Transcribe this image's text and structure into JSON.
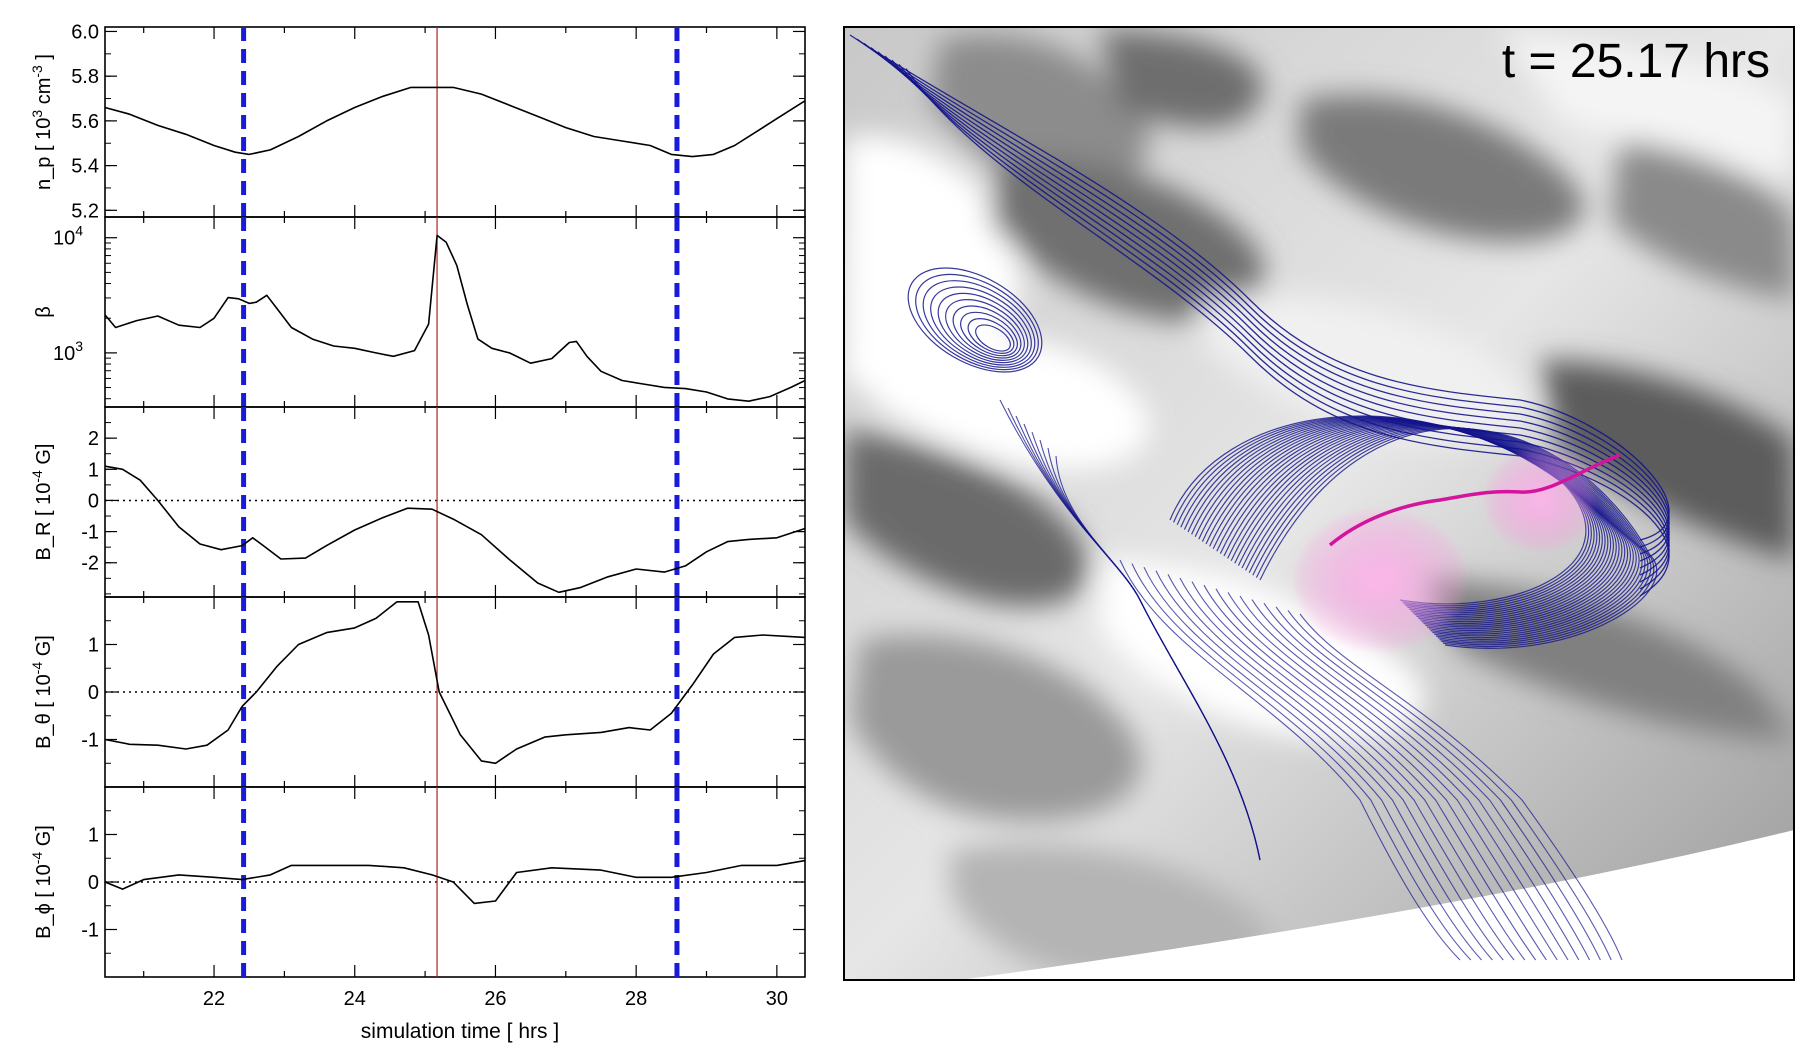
{
  "chart_data": {
    "type": "line",
    "x_axis": {
      "label": "simulation time   [ hrs ]",
      "range": [
        20.45,
        30.4
      ],
      "ticks": [
        22,
        24,
        26,
        28,
        30
      ]
    },
    "markers": {
      "vertical_dashed_blue": [
        22.42,
        28.58
      ],
      "vertical_red": 25.17,
      "dashed_color": "#1a1adb",
      "red_color": "#b22222"
    },
    "panels": [
      {
        "key": "n_p",
        "ylabel_main": "n_p  [ 10",
        "ylabel_exp": "3",
        "ylabel_rest": " cm",
        "ylabel_exp2": "-3",
        "ylabel_end": "]",
        "yrange": [
          5.17,
          6.02
        ],
        "log": false,
        "ticks": [
          "5.2",
          "5.4",
          "5.6",
          "5.8",
          "6.0"
        ],
        "tick_values": [
          5.2,
          5.4,
          5.6,
          5.8,
          6.0
        ],
        "zero_line": false,
        "points": [
          [
            20.45,
            5.66
          ],
          [
            20.8,
            5.63
          ],
          [
            21.2,
            5.58
          ],
          [
            21.6,
            5.54
          ],
          [
            22.0,
            5.49
          ],
          [
            22.3,
            5.46
          ],
          [
            22.5,
            5.45
          ],
          [
            22.8,
            5.47
          ],
          [
            23.2,
            5.53
          ],
          [
            23.6,
            5.6
          ],
          [
            24.0,
            5.66
          ],
          [
            24.4,
            5.71
          ],
          [
            24.8,
            5.75
          ],
          [
            25.1,
            5.75
          ],
          [
            25.4,
            5.75
          ],
          [
            25.8,
            5.72
          ],
          [
            26.2,
            5.67
          ],
          [
            26.6,
            5.62
          ],
          [
            27.0,
            5.57
          ],
          [
            27.4,
            5.53
          ],
          [
            27.8,
            5.51
          ],
          [
            28.2,
            5.49
          ],
          [
            28.5,
            5.45
          ],
          [
            28.8,
            5.44
          ],
          [
            29.1,
            5.45
          ],
          [
            29.4,
            5.49
          ],
          [
            29.7,
            5.55
          ],
          [
            30.0,
            5.61
          ],
          [
            30.4,
            5.69
          ]
        ]
      },
      {
        "key": "beta",
        "ylabel_main": "β",
        "yrange": [
          2.53,
          4.18
        ],
        "log": true,
        "ticks": [
          "10",
          "10"
        ],
        "tick_exps": [
          "3",
          "4"
        ],
        "tick_values": [
          3,
          4
        ],
        "zero_line": false,
        "points": [
          [
            20.45,
            3.33
          ],
          [
            20.6,
            3.22
          ],
          [
            20.9,
            3.28
          ],
          [
            21.2,
            3.32
          ],
          [
            21.5,
            3.24
          ],
          [
            21.8,
            3.22
          ],
          [
            22.0,
            3.3
          ],
          [
            22.2,
            3.48
          ],
          [
            22.35,
            3.47
          ],
          [
            22.5,
            3.43
          ],
          [
            22.6,
            3.44
          ],
          [
            22.75,
            3.5
          ],
          [
            22.9,
            3.38
          ],
          [
            23.1,
            3.22
          ],
          [
            23.4,
            3.12
          ],
          [
            23.7,
            3.06
          ],
          [
            24.0,
            3.04
          ],
          [
            24.3,
            3.0
          ],
          [
            24.55,
            2.97
          ],
          [
            24.85,
            3.02
          ],
          [
            25.05,
            3.25
          ],
          [
            25.17,
            4.02
          ],
          [
            25.3,
            3.96
          ],
          [
            25.45,
            3.76
          ],
          [
            25.6,
            3.42
          ],
          [
            25.75,
            3.12
          ],
          [
            25.95,
            3.04
          ],
          [
            26.2,
            3.0
          ],
          [
            26.5,
            2.91
          ],
          [
            26.8,
            2.95
          ],
          [
            27.05,
            3.09
          ],
          [
            27.15,
            3.1
          ],
          [
            27.3,
            2.97
          ],
          [
            27.5,
            2.84
          ],
          [
            27.8,
            2.76
          ],
          [
            28.1,
            2.73
          ],
          [
            28.4,
            2.7
          ],
          [
            28.7,
            2.69
          ],
          [
            29.0,
            2.66
          ],
          [
            29.3,
            2.6
          ],
          [
            29.6,
            2.58
          ],
          [
            29.9,
            2.62
          ],
          [
            30.2,
            2.7
          ],
          [
            30.4,
            2.76
          ]
        ]
      },
      {
        "key": "B_R",
        "ylabel_main": "B_R",
        "ylabel_unit": "[ 10",
        "ylabel_exp": "-4",
        "ylabel_end": " G]",
        "yrange": [
          -3.1,
          3.0
        ],
        "log": false,
        "ticks": [
          "-2",
          "-1",
          "0",
          "1",
          "2"
        ],
        "tick_values": [
          -2,
          -1,
          0,
          1,
          2
        ],
        "zero_line": true,
        "points": [
          [
            20.45,
            1.1
          ],
          [
            20.7,
            1.0
          ],
          [
            20.95,
            0.65
          ],
          [
            21.2,
            0.0
          ],
          [
            21.5,
            -0.85
          ],
          [
            21.8,
            -1.4
          ],
          [
            22.1,
            -1.58
          ],
          [
            22.4,
            -1.45
          ],
          [
            22.55,
            -1.2
          ],
          [
            22.7,
            -1.45
          ],
          [
            22.95,
            -1.88
          ],
          [
            23.3,
            -1.85
          ],
          [
            23.6,
            -1.45
          ],
          [
            24.0,
            -0.95
          ],
          [
            24.4,
            -0.55
          ],
          [
            24.75,
            -0.25
          ],
          [
            25.1,
            -0.28
          ],
          [
            25.4,
            -0.6
          ],
          [
            25.8,
            -1.1
          ],
          [
            26.2,
            -1.9
          ],
          [
            26.6,
            -2.65
          ],
          [
            26.9,
            -2.95
          ],
          [
            27.2,
            -2.8
          ],
          [
            27.6,
            -2.45
          ],
          [
            28.0,
            -2.2
          ],
          [
            28.4,
            -2.3
          ],
          [
            28.7,
            -2.1
          ],
          [
            29.0,
            -1.65
          ],
          [
            29.3,
            -1.32
          ],
          [
            29.6,
            -1.25
          ],
          [
            30.0,
            -1.2
          ],
          [
            30.4,
            -0.9
          ]
        ]
      },
      {
        "key": "B_theta",
        "ylabel_main": "B_θ",
        "ylabel_unit": "[ 10",
        "ylabel_exp": "-4",
        "ylabel_end": " G]",
        "yrange": [
          -2.0,
          2.0
        ],
        "log": false,
        "ticks": [
          "-1",
          "0",
          "1"
        ],
        "tick_values": [
          -1,
          0,
          1
        ],
        "zero_line": true,
        "points": [
          [
            20.45,
            -1.0
          ],
          [
            20.8,
            -1.1
          ],
          [
            21.2,
            -1.12
          ],
          [
            21.6,
            -1.2
          ],
          [
            21.9,
            -1.12
          ],
          [
            22.2,
            -0.8
          ],
          [
            22.4,
            -0.3
          ],
          [
            22.6,
            0.0
          ],
          [
            22.9,
            0.55
          ],
          [
            23.2,
            1.0
          ],
          [
            23.6,
            1.25
          ],
          [
            24.0,
            1.35
          ],
          [
            24.3,
            1.55
          ],
          [
            24.6,
            1.9
          ],
          [
            24.9,
            1.9
          ],
          [
            25.05,
            1.2
          ],
          [
            25.2,
            0.0
          ],
          [
            25.5,
            -0.9
          ],
          [
            25.8,
            -1.45
          ],
          [
            26.0,
            -1.5
          ],
          [
            26.3,
            -1.2
          ],
          [
            26.7,
            -0.95
          ],
          [
            27.0,
            -0.9
          ],
          [
            27.5,
            -0.85
          ],
          [
            27.9,
            -0.75
          ],
          [
            28.2,
            -0.8
          ],
          [
            28.5,
            -0.45
          ],
          [
            28.8,
            0.15
          ],
          [
            29.1,
            0.8
          ],
          [
            29.4,
            1.15
          ],
          [
            29.8,
            1.2
          ],
          [
            30.4,
            1.15
          ]
        ]
      },
      {
        "key": "B_phi",
        "ylabel_main": "B_ϕ",
        "ylabel_unit": "[ 10",
        "ylabel_exp": "-4",
        "ylabel_end": " G]",
        "yrange": [
          -2.0,
          2.0
        ],
        "log": false,
        "ticks": [
          "-1",
          "0",
          "1"
        ],
        "tick_values": [
          -1,
          0,
          1
        ],
        "zero_line": true,
        "points": [
          [
            20.45,
            0.0
          ],
          [
            20.7,
            -0.15
          ],
          [
            21.0,
            0.05
          ],
          [
            21.5,
            0.15
          ],
          [
            22.0,
            0.1
          ],
          [
            22.4,
            0.05
          ],
          [
            22.8,
            0.15
          ],
          [
            23.1,
            0.35
          ],
          [
            23.6,
            0.35
          ],
          [
            24.2,
            0.35
          ],
          [
            24.7,
            0.3
          ],
          [
            25.1,
            0.15
          ],
          [
            25.4,
            0.0
          ],
          [
            25.7,
            -0.45
          ],
          [
            26.0,
            -0.4
          ],
          [
            26.3,
            0.2
          ],
          [
            26.8,
            0.3
          ],
          [
            27.5,
            0.25
          ],
          [
            28.0,
            0.1
          ],
          [
            28.5,
            0.1
          ],
          [
            29.0,
            0.2
          ],
          [
            29.5,
            0.35
          ],
          [
            30.0,
            0.35
          ],
          [
            30.4,
            0.45
          ]
        ]
      }
    ]
  },
  "visualization": {
    "timestamp": "t =  25.17 hrs",
    "fieldline_color": "#14148c",
    "highlight_color": "#d4149c",
    "bubble_color": "#ff8ce0"
  }
}
